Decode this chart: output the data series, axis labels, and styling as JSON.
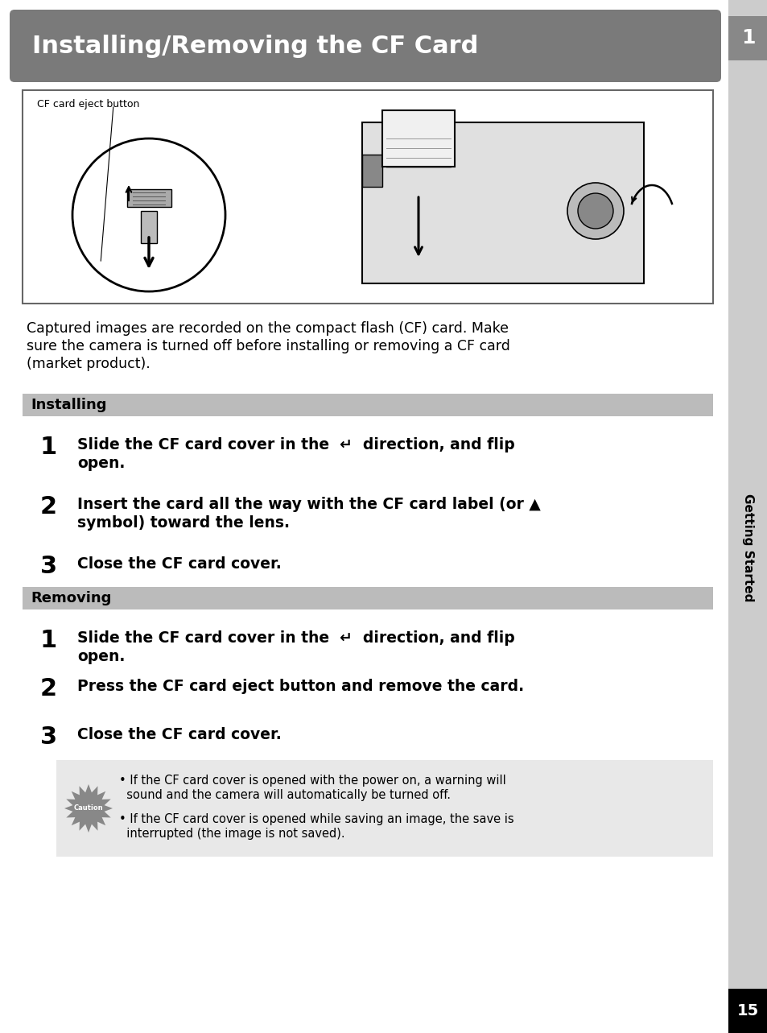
{
  "title": "Installing/Removing the CF Card",
  "title_bg_color": "#7a7a7a",
  "title_text_color": "#ffffff",
  "page_bg_color": "#ffffff",
  "sidebar_color": "#cccccc",
  "page_number": "15",
  "sidebar_text": "Getting Started",
  "sidebar_number": "1",
  "section_bg_color": "#bbbbbb",
  "caution_bg_color": "#e8e8e8",
  "intro_lines": [
    "Captured images are recorded on the compact flash (CF) card. Make",
    "sure the camera is turned off before installing or removing a CF card",
    "(market product)."
  ],
  "installing_header": "Installing",
  "installing_steps": [
    [
      "1",
      "Slide the CF card cover in the  ↵  direction, and flip",
      "open."
    ],
    [
      "2",
      "Insert the card all the way with the CF card label (or ▲",
      "symbol) toward the lens."
    ],
    [
      "3",
      "Close the CF card cover.",
      null
    ]
  ],
  "removing_header": "Removing",
  "removing_steps": [
    [
      "1",
      "Slide the CF card cover in the  ↵  direction, and flip",
      "open."
    ],
    [
      "2",
      "Press the CF card eject button and remove the card.",
      null
    ],
    [
      "3",
      "Close the CF card cover.",
      null
    ]
  ],
  "caution_bullets": [
    "If the CF card cover is opened with the power on, a warning will\n    sound and the camera will automatically be turned off.",
    "If the CF card cover is opened while saving an image, the save is\n    interrupted (the image is not saved)."
  ],
  "image_label": "CF card eject button"
}
